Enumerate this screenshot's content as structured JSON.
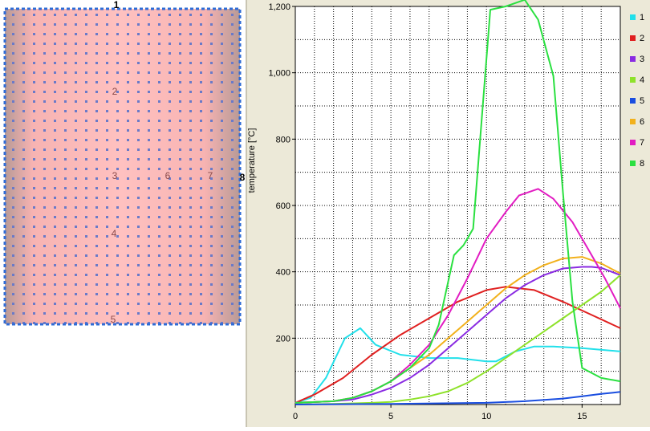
{
  "model": {
    "fill_color": "#f7b3b2",
    "edge_color": "#b89a96",
    "mesh_dot_color": "#6a7ac8",
    "border_color": "#2e6bd6",
    "node_labels": [
      {
        "id": "n1",
        "text": "1"
      },
      {
        "id": "n2",
        "text": "2"
      },
      {
        "id": "n3",
        "text": "3"
      },
      {
        "id": "n4",
        "text": "4"
      },
      {
        "id": "n5",
        "text": "5"
      },
      {
        "id": "n6",
        "text": "6"
      },
      {
        "id": "n7",
        "text": "7"
      },
      {
        "id": "n8",
        "text": "8"
      }
    ]
  },
  "chart_data": {
    "type": "line",
    "title": "",
    "xlabel": "",
    "ylabel": "temperature [°C]",
    "xlim": [
      0,
      17
    ],
    "ylim": [
      0,
      1200
    ],
    "x_ticks": [
      0,
      5,
      10,
      15
    ],
    "y_ticks": [
      200,
      400,
      600,
      800,
      1000,
      1200
    ],
    "y_tick_labels": [
      "200",
      "400",
      "600",
      "800",
      "1,000",
      "1,200"
    ],
    "grid": true,
    "legend_position": "right",
    "series": [
      {
        "name": "1",
        "color": "#22e0ea",
        "x": [
          0,
          0.8,
          1.6,
          2.6,
          3.4,
          4.2,
          5.5,
          7,
          8.5,
          10,
          10.5,
          11.5,
          12.5,
          13.5,
          15,
          17
        ],
        "y": [
          5,
          20,
          80,
          200,
          230,
          180,
          150,
          140,
          140,
          130,
          130,
          160,
          175,
          175,
          170,
          160
        ]
      },
      {
        "name": "2",
        "color": "#e02020",
        "x": [
          0,
          1,
          2.5,
          4,
          5.5,
          7,
          8.5,
          10,
          11,
          12.5,
          14,
          15.5,
          17
        ],
        "y": [
          5,
          30,
          80,
          150,
          210,
          260,
          310,
          345,
          355,
          345,
          310,
          270,
          230
        ]
      },
      {
        "name": "3",
        "color": "#8a2be2",
        "x": [
          0,
          2,
          3,
          4,
          5,
          6,
          7,
          8,
          9,
          10,
          11,
          12,
          13,
          14,
          15,
          15.5,
          16,
          17
        ],
        "y": [
          5,
          10,
          15,
          30,
          50,
          80,
          120,
          170,
          220,
          270,
          320,
          360,
          390,
          410,
          415,
          415,
          412,
          390
        ]
      },
      {
        "name": "4",
        "color": "#8ee22a",
        "x": [
          0,
          2,
          4,
          5,
          6,
          7,
          8,
          9,
          10,
          11,
          12,
          13,
          14,
          15,
          16,
          17
        ],
        "y": [
          0,
          2,
          5,
          8,
          15,
          25,
          40,
          65,
          100,
          140,
          180,
          220,
          260,
          300,
          340,
          390
        ]
      },
      {
        "name": "5",
        "color": "#1a4ee0",
        "x": [
          0,
          5,
          10,
          12,
          14,
          15,
          16,
          17
        ],
        "y": [
          0,
          2,
          5,
          10,
          18,
          25,
          32,
          38
        ]
      },
      {
        "name": "6",
        "color": "#f2b11c",
        "x": [
          0,
          2,
          3,
          4,
          5,
          6,
          7,
          8,
          9,
          10,
          11,
          12,
          13,
          14,
          15,
          16,
          17
        ],
        "y": [
          5,
          10,
          20,
          40,
          70,
          110,
          150,
          200,
          250,
          300,
          350,
          390,
          420,
          440,
          445,
          425,
          395
        ]
      },
      {
        "name": "7",
        "color": "#e21cc2",
        "x": [
          0,
          2,
          3,
          4,
          5,
          6,
          7,
          8,
          9,
          10,
          11,
          11.7,
          12.7,
          13.5,
          14.5,
          15.5,
          16.2,
          17
        ],
        "y": [
          5,
          10,
          20,
          40,
          70,
          120,
          180,
          270,
          380,
          500,
          580,
          630,
          650,
          620,
          550,
          450,
          380,
          290
        ]
      },
      {
        "name": "8",
        "color": "#2ae040",
        "x": [
          0,
          2,
          3,
          4,
          5,
          6,
          7,
          7.5,
          8.3,
          8.8,
          9.3,
          10.2,
          11,
          12,
          12.7,
          13.5,
          14,
          14.5,
          15,
          16,
          17
        ],
        "y": [
          5,
          10,
          20,
          40,
          70,
          110,
          170,
          240,
          450,
          480,
          530,
          1190,
          1200,
          1220,
          1160,
          990,
          640,
          310,
          110,
          80,
          70
        ]
      }
    ]
  }
}
